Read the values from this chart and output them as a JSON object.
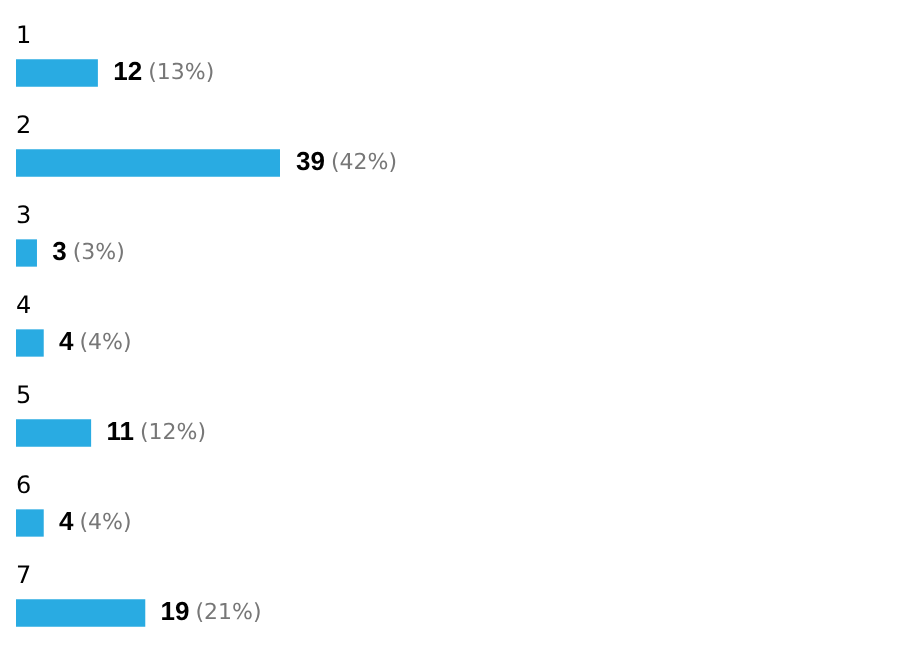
{
  "chart_data": {
    "type": "bar",
    "orientation": "horizontal",
    "categories": [
      "1",
      "2",
      "3",
      "4",
      "5",
      "6",
      "7"
    ],
    "values": [
      12,
      39,
      3,
      4,
      11,
      4,
      19
    ],
    "value_labels": [
      "12 (13%)",
      "39 (42%)",
      "3 (3%)",
      "4 (4%)",
      "11 (12%)",
      "4 (4%)",
      "19 (21%)"
    ],
    "color": "#29abe2",
    "legend": false
  }
}
